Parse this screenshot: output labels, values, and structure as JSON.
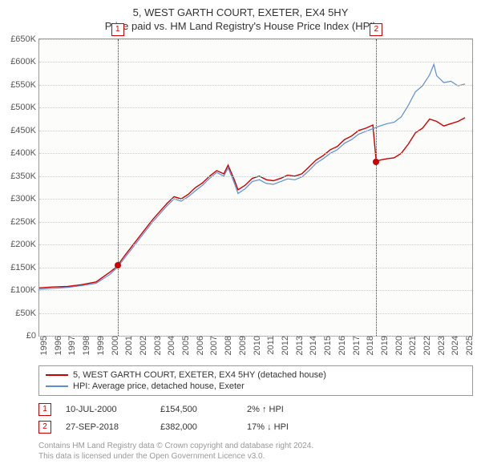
{
  "title": {
    "line1": "5, WEST GARTH COURT, EXETER, EX4 5HY",
    "line2": "Price paid vs. HM Land Registry's House Price Index (HPI)"
  },
  "chart": {
    "type": "line",
    "background_color": "#fcfcfa",
    "grid_color": "#cccccc",
    "axis_color": "#999999",
    "label_color": "#555555",
    "label_fontsize": 11,
    "x": {
      "min": 1995,
      "max": 2025.5,
      "ticks": [
        1995,
        1996,
        1997,
        1998,
        1999,
        2000,
        2001,
        2002,
        2003,
        2004,
        2005,
        2006,
        2007,
        2008,
        2009,
        2010,
        2011,
        2012,
        2013,
        2014,
        2015,
        2016,
        2017,
        2018,
        2019,
        2020,
        2021,
        2022,
        2023,
        2024,
        2025
      ],
      "tick_labels": [
        "1995",
        "1996",
        "1997",
        "1998",
        "1999",
        "2000",
        "2001",
        "2002",
        "2003",
        "2004",
        "2005",
        "2006",
        "2007",
        "2008",
        "2009",
        "2010",
        "2011",
        "2012",
        "2013",
        "2014",
        "2015",
        "2016",
        "2017",
        "2018",
        "2019",
        "2020",
        "2021",
        "2022",
        "2023",
        "2024",
        "2025"
      ]
    },
    "y": {
      "min": 0,
      "max": 650000,
      "ticks": [
        0,
        50000,
        100000,
        150000,
        200000,
        250000,
        300000,
        350000,
        400000,
        450000,
        500000,
        550000,
        600000,
        650000
      ],
      "tick_labels": [
        "£0",
        "£50K",
        "£100K",
        "£150K",
        "£200K",
        "£250K",
        "£300K",
        "£350K",
        "£400K",
        "£450K",
        "£500K",
        "£550K",
        "£600K",
        "£650K"
      ]
    },
    "series": [
      {
        "key": "property",
        "color": "#cc0000",
        "line_width": 1.4,
        "points": [
          [
            1995,
            105000
          ],
          [
            1996,
            107000
          ],
          [
            1997,
            108000
          ],
          [
            1998,
            112000
          ],
          [
            1999,
            118000
          ],
          [
            2000,
            140000
          ],
          [
            2000.4,
            150000
          ],
          [
            2000.52,
            154500
          ],
          [
            2001,
            175000
          ],
          [
            2002,
            215000
          ],
          [
            2003,
            255000
          ],
          [
            2004,
            290000
          ],
          [
            2004.5,
            305000
          ],
          [
            2005,
            300000
          ],
          [
            2005.5,
            310000
          ],
          [
            2006,
            325000
          ],
          [
            2006.5,
            335000
          ],
          [
            2007,
            350000
          ],
          [
            2007.5,
            362000
          ],
          [
            2008,
            355000
          ],
          [
            2008.3,
            374000
          ],
          [
            2008.7,
            345000
          ],
          [
            2009,
            320000
          ],
          [
            2009.5,
            330000
          ],
          [
            2010,
            345000
          ],
          [
            2010.5,
            350000
          ],
          [
            2011,
            342000
          ],
          [
            2011.5,
            340000
          ],
          [
            2012,
            345000
          ],
          [
            2012.5,
            352000
          ],
          [
            2013,
            350000
          ],
          [
            2013.5,
            355000
          ],
          [
            2014,
            370000
          ],
          [
            2014.5,
            385000
          ],
          [
            2015,
            395000
          ],
          [
            2015.5,
            408000
          ],
          [
            2016,
            415000
          ],
          [
            2016.5,
            430000
          ],
          [
            2017,
            438000
          ],
          [
            2017.5,
            450000
          ],
          [
            2018,
            455000
          ],
          [
            2018.5,
            462000
          ],
          [
            2018.74,
            382000
          ],
          [
            2019,
            385000
          ],
          [
            2019.5,
            388000
          ],
          [
            2020,
            390000
          ],
          [
            2020.5,
            400000
          ],
          [
            2021,
            420000
          ],
          [
            2021.5,
            445000
          ],
          [
            2022,
            455000
          ],
          [
            2022.5,
            475000
          ],
          [
            2023,
            470000
          ],
          [
            2023.5,
            460000
          ],
          [
            2024,
            465000
          ],
          [
            2024.5,
            470000
          ],
          [
            2025,
            478000
          ]
        ]
      },
      {
        "key": "hpi",
        "color": "#5b8fd6",
        "line_width": 1.2,
        "points": [
          [
            1995,
            102000
          ],
          [
            1996,
            104000
          ],
          [
            1997,
            106000
          ],
          [
            1998,
            110000
          ],
          [
            1999,
            115000
          ],
          [
            2000,
            135000
          ],
          [
            2000.5,
            150000
          ],
          [
            2001,
            170000
          ],
          [
            2002,
            210000
          ],
          [
            2003,
            250000
          ],
          [
            2004,
            285000
          ],
          [
            2004.5,
            300000
          ],
          [
            2005,
            295000
          ],
          [
            2005.5,
            305000
          ],
          [
            2006,
            318000
          ],
          [
            2006.5,
            330000
          ],
          [
            2007,
            345000
          ],
          [
            2007.5,
            358000
          ],
          [
            2008,
            350000
          ],
          [
            2008.3,
            368000
          ],
          [
            2008.7,
            338000
          ],
          [
            2009,
            312000
          ],
          [
            2009.5,
            322000
          ],
          [
            2010,
            338000
          ],
          [
            2010.5,
            342000
          ],
          [
            2011,
            334000
          ],
          [
            2011.5,
            332000
          ],
          [
            2012,
            338000
          ],
          [
            2012.5,
            344000
          ],
          [
            2013,
            342000
          ],
          [
            2013.5,
            348000
          ],
          [
            2014,
            362000
          ],
          [
            2014.5,
            378000
          ],
          [
            2015,
            388000
          ],
          [
            2015.5,
            400000
          ],
          [
            2016,
            408000
          ],
          [
            2016.5,
            422000
          ],
          [
            2017,
            430000
          ],
          [
            2017.5,
            442000
          ],
          [
            2018,
            448000
          ],
          [
            2018.5,
            454000
          ],
          [
            2019,
            460000
          ],
          [
            2019.5,
            465000
          ],
          [
            2020,
            468000
          ],
          [
            2020.5,
            480000
          ],
          [
            2021,
            505000
          ],
          [
            2021.5,
            535000
          ],
          [
            2022,
            548000
          ],
          [
            2022.5,
            572000
          ],
          [
            2022.8,
            595000
          ],
          [
            2023,
            570000
          ],
          [
            2023.5,
            555000
          ],
          [
            2024,
            558000
          ],
          [
            2024.5,
            548000
          ],
          [
            2025,
            552000
          ]
        ]
      }
    ],
    "sale_markers": [
      {
        "n": "1",
        "year": 2000.52,
        "price": 154500,
        "color": "#cc0000"
      },
      {
        "n": "2",
        "year": 2018.74,
        "price": 382000,
        "color": "#cc0000"
      }
    ]
  },
  "legend": {
    "items": [
      {
        "color": "#cc0000",
        "label": "5, WEST GARTH COURT, EXETER, EX4 5HY (detached house)"
      },
      {
        "color": "#5b8fd6",
        "label": "HPI: Average price, detached house, Exeter"
      }
    ]
  },
  "sales": [
    {
      "n": "1",
      "date": "10-JUL-2000",
      "price": "£154,500",
      "pct": "2%",
      "dir": "up",
      "suffix": "HPI",
      "color": "#cc0000"
    },
    {
      "n": "2",
      "date": "27-SEP-2018",
      "price": "£382,000",
      "pct": "17%",
      "dir": "down",
      "suffix": "HPI",
      "color": "#cc0000"
    }
  ],
  "footer": {
    "line1": "Contains HM Land Registry data © Crown copyright and database right 2024.",
    "line2": "This data is licensed under the Open Government Licence v3.0."
  }
}
